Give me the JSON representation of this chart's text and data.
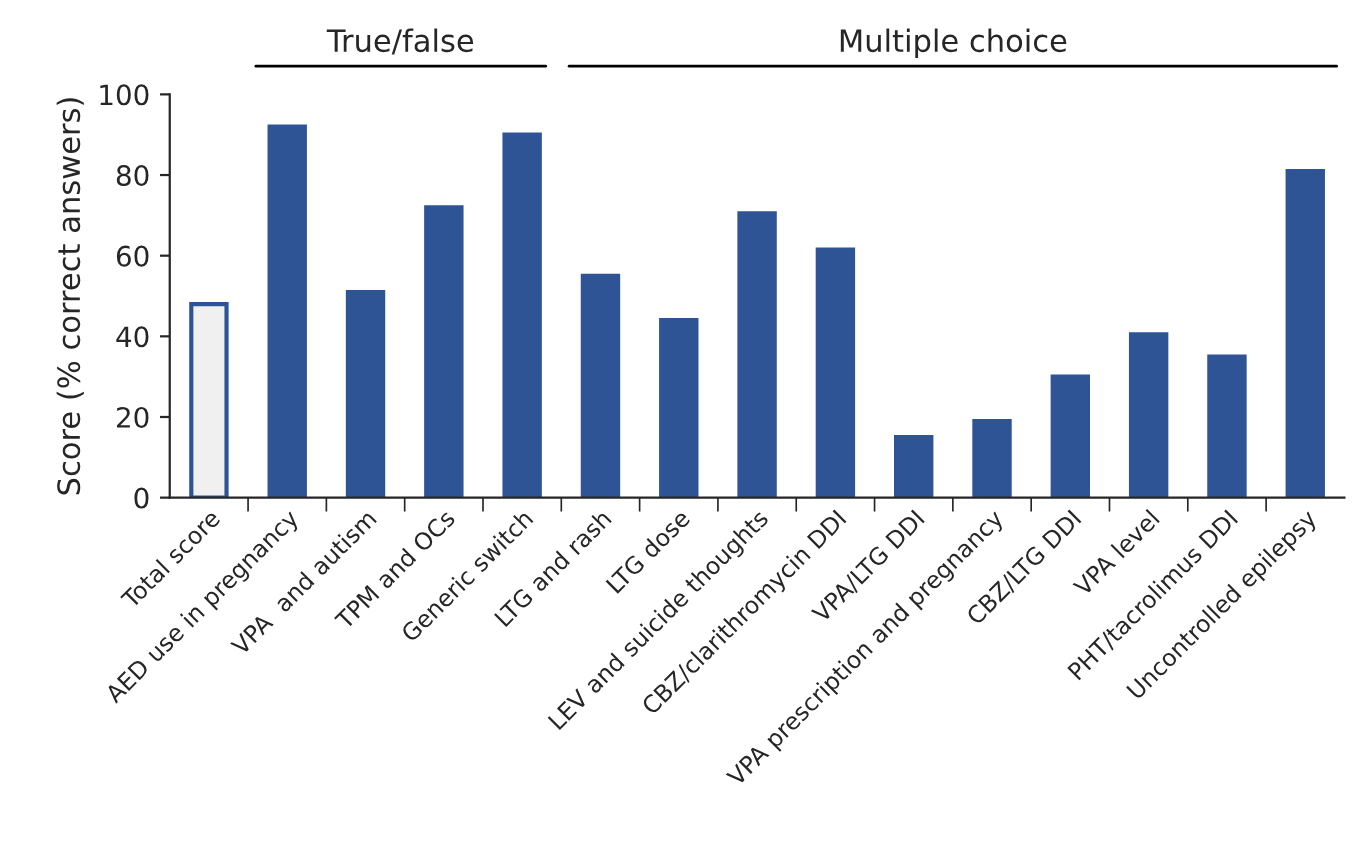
{
  "chart_data": {
    "type": "bar",
    "ylabel": "Score (% correct answers)",
    "categories": [
      "Total score",
      "AED use in pregnancy",
      "VPA  and autism",
      "TPM and OCs",
      "Generic switch",
      "LTG and rash",
      "LTG dose",
      "LEV and suicide thoughts",
      "CBZ/clarithromycin DDI",
      "VPA/LTG DDI",
      "VPA prescription and pregnancy",
      "CBZ/LTG DDI",
      "VPA level",
      "PHT/tacrolimus DDI",
      "Uncontrolled epilepsy"
    ],
    "values": [
      48,
      92,
      51,
      72,
      90,
      55,
      44,
      70.5,
      61.5,
      15,
      19,
      30,
      40.5,
      35,
      81
    ],
    "colors": [
      "#f0f0f0",
      "#2e5496",
      "#2e5496",
      "#2e5496",
      "#2e5496",
      "#2e5496",
      "#2e5496",
      "#2e5496",
      "#2e5496",
      "#2e5496",
      "#2e5496",
      "#2e5496",
      "#2e5496",
      "#2e5496",
      "#2e5496"
    ],
    "ylim": [
      0,
      100
    ],
    "yticks": [
      0,
      20,
      40,
      60,
      80,
      100
    ],
    "grid": false,
    "annotations": [
      "True/false",
      "Multiple choice"
    ]
  }
}
